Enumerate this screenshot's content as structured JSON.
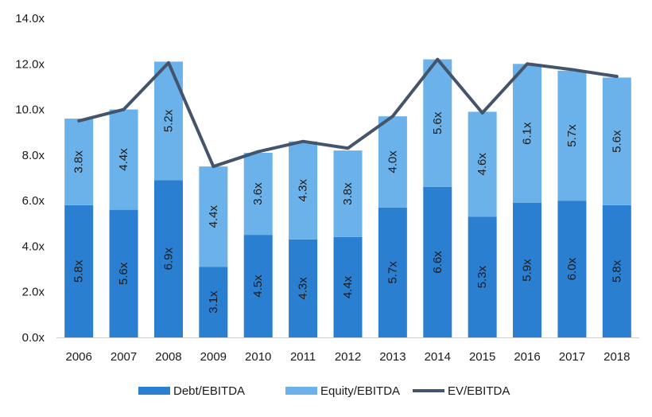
{
  "chart_data": {
    "type": "bar",
    "stacked": true,
    "categories": [
      "2006",
      "2007",
      "2008",
      "2009",
      "2010",
      "2011",
      "2012",
      "2013",
      "2014",
      "2015",
      "2016",
      "2017",
      "2018"
    ],
    "series": [
      {
        "name": "Debt/EBITDA",
        "kind": "bar",
        "color": "#2b7fd1",
        "values": [
          5.8,
          5.6,
          6.9,
          3.1,
          4.5,
          4.3,
          4.4,
          5.7,
          6.6,
          5.3,
          5.9,
          6.0,
          5.8
        ],
        "labels": [
          "5.8x",
          "5.6x",
          "6.9x",
          "3.1x",
          "4.5x",
          "4.3x",
          "4.4x",
          "5.7x",
          "6.6x",
          "5.3x",
          "5.9x",
          "6.0x",
          "5.8x"
        ]
      },
      {
        "name": "Equity/EBITDA",
        "kind": "bar",
        "color": "#6cb2ea",
        "values": [
          3.8,
          4.4,
          5.2,
          4.4,
          3.6,
          4.3,
          3.8,
          4.0,
          5.6,
          4.6,
          6.1,
          5.7,
          5.6
        ],
        "labels": [
          "3.8x",
          "4.4x",
          "5.2x",
          "4.4x",
          "3.6x",
          "4.3x",
          "3.8x",
          "4.0x",
          "5.6x",
          "4.6x",
          "6.1x",
          "5.7x",
          "5.6x"
        ]
      },
      {
        "name": "EV/EBITDA",
        "kind": "line",
        "color": "#44546a",
        "values": [
          9.5,
          10.0,
          12.05,
          7.5,
          8.15,
          8.6,
          8.3,
          9.7,
          12.2,
          9.85,
          12.0,
          11.75,
          11.45
        ]
      }
    ],
    "ylim": [
      0,
      14
    ],
    "yticks": [
      "0.0x",
      "2.0x",
      "4.0x",
      "6.0x",
      "8.0x",
      "10.0x",
      "12.0x",
      "14.0x"
    ],
    "grid": false,
    "legend": "bottom",
    "title": "",
    "xlabel": "",
    "ylabel": ""
  }
}
